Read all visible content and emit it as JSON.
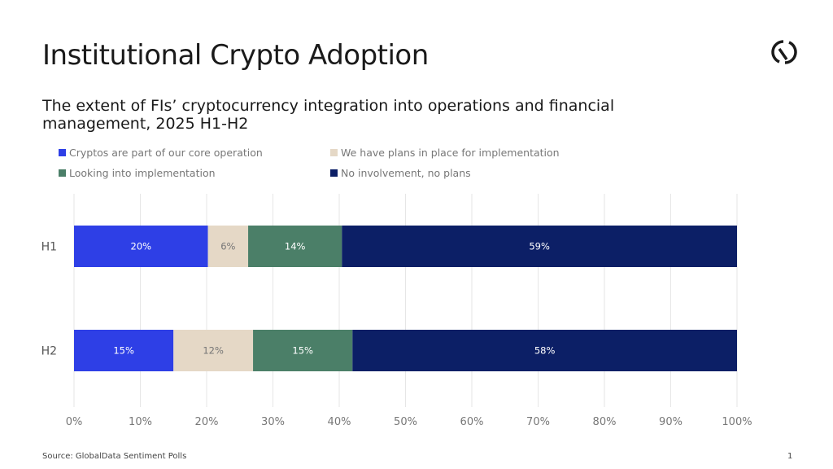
{
  "title": "Institutional Crypto Adoption",
  "subtitle": "The extent of FIs’ cryptocurrency integration into operations and financial management, 2025 H1-H2",
  "source": "Source: GlobalData Sentiment Polls",
  "page_number": "1",
  "chart_data": {
    "type": "bar",
    "orientation": "horizontal-stacked",
    "categories": [
      "H1",
      "H2"
    ],
    "series": [
      {
        "name": "Cryptos are part of our core operation",
        "color": "#2e3fe6",
        "values": [
          20,
          15
        ],
        "labels": [
          "20%",
          "15%"
        ]
      },
      {
        "name": "We have plans in place for implementation",
        "color": "#e5d8c6",
        "values": [
          6,
          12
        ],
        "labels": [
          "6%",
          "12%"
        ]
      },
      {
        "name": "Looking into implementation",
        "color": "#4b7f68",
        "values": [
          14,
          15
        ],
        "labels": [
          "14%",
          "15%"
        ]
      },
      {
        "name": "No involvement, no plans",
        "color": "#0c1f66",
        "values": [
          59,
          58
        ],
        "labels": [
          "59%",
          "58%"
        ]
      }
    ],
    "xlim": [
      0,
      100
    ],
    "xticks": [
      "0%",
      "10%",
      "20%",
      "30%",
      "40%",
      "50%",
      "60%",
      "70%",
      "80%",
      "90%",
      "100%"
    ],
    "grid": true,
    "legend": "top"
  }
}
